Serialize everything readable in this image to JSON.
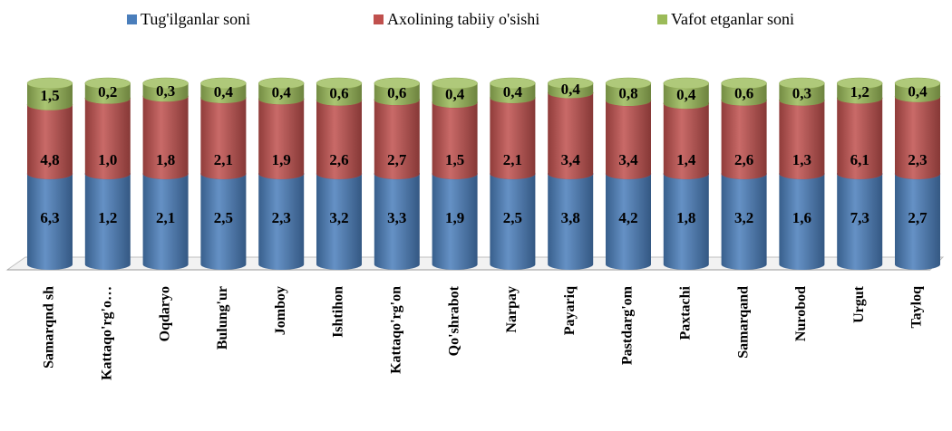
{
  "chart_data": {
    "type": "bar",
    "stack": "percent",
    "categories": [
      "Samarqnd sh",
      "Kattaqo'rg'o…",
      "Oqdaryo",
      "Bulung'ur",
      "Jomboy",
      "Ishtihon",
      "Kattaqo'rg'on",
      "Qo'shrabot",
      "Narpay",
      "Payariq",
      "Pastdarg'om",
      "Paxtachi",
      "Samarqand",
      "Nurobod",
      "Urgut",
      "Tayloq"
    ],
    "series": [
      {
        "name": "Tug'ilganlar soni",
        "color": "#4a7ebb",
        "values": [
          6.3,
          1.2,
          2.1,
          2.5,
          2.3,
          3.2,
          3.3,
          1.9,
          2.5,
          3.8,
          4.2,
          1.8,
          3.2,
          1.6,
          7.3,
          2.7
        ],
        "value_labels": [
          "6,3",
          "1,2",
          "2,1",
          "2,5",
          "2,3",
          "3,2",
          "3,3",
          "1,9",
          "2,5",
          "3,8",
          "4,2",
          "1,8",
          "3,2",
          "1,6",
          "7,3",
          "2,7"
        ]
      },
      {
        "name": "Axolining tabiiy o'sishi",
        "color": "#c0504d",
        "values": [
          4.8,
          1.0,
          1.8,
          2.1,
          1.9,
          2.6,
          2.7,
          1.5,
          2.1,
          3.4,
          3.4,
          1.4,
          2.6,
          1.3,
          6.1,
          2.3
        ],
        "value_labels": [
          "4,8",
          "1,0",
          "1,8",
          "2,1",
          "1,9",
          "2,6",
          "2,7",
          "1,5",
          "2,1",
          "3,4",
          "3,4",
          "1,4",
          "2,6",
          "1,3",
          "6,1",
          "2,3"
        ]
      },
      {
        "name": "Vafot etganlar soni",
        "color": "#9bbb59",
        "values": [
          1.5,
          0.2,
          0.3,
          0.4,
          0.4,
          0.6,
          0.6,
          0.4,
          0.4,
          0.4,
          0.8,
          0.4,
          0.6,
          0.3,
          1.2,
          0.4
        ],
        "value_labels": [
          "1,5",
          "0,2",
          "0,3",
          "0,4",
          "0,4",
          "0,6",
          "0,6",
          "0,4",
          "0,4",
          "0,4",
          "0,8",
          "0,4",
          "0,6",
          "0,3",
          "1,2",
          "0,4"
        ]
      }
    ],
    "legend": "top"
  }
}
